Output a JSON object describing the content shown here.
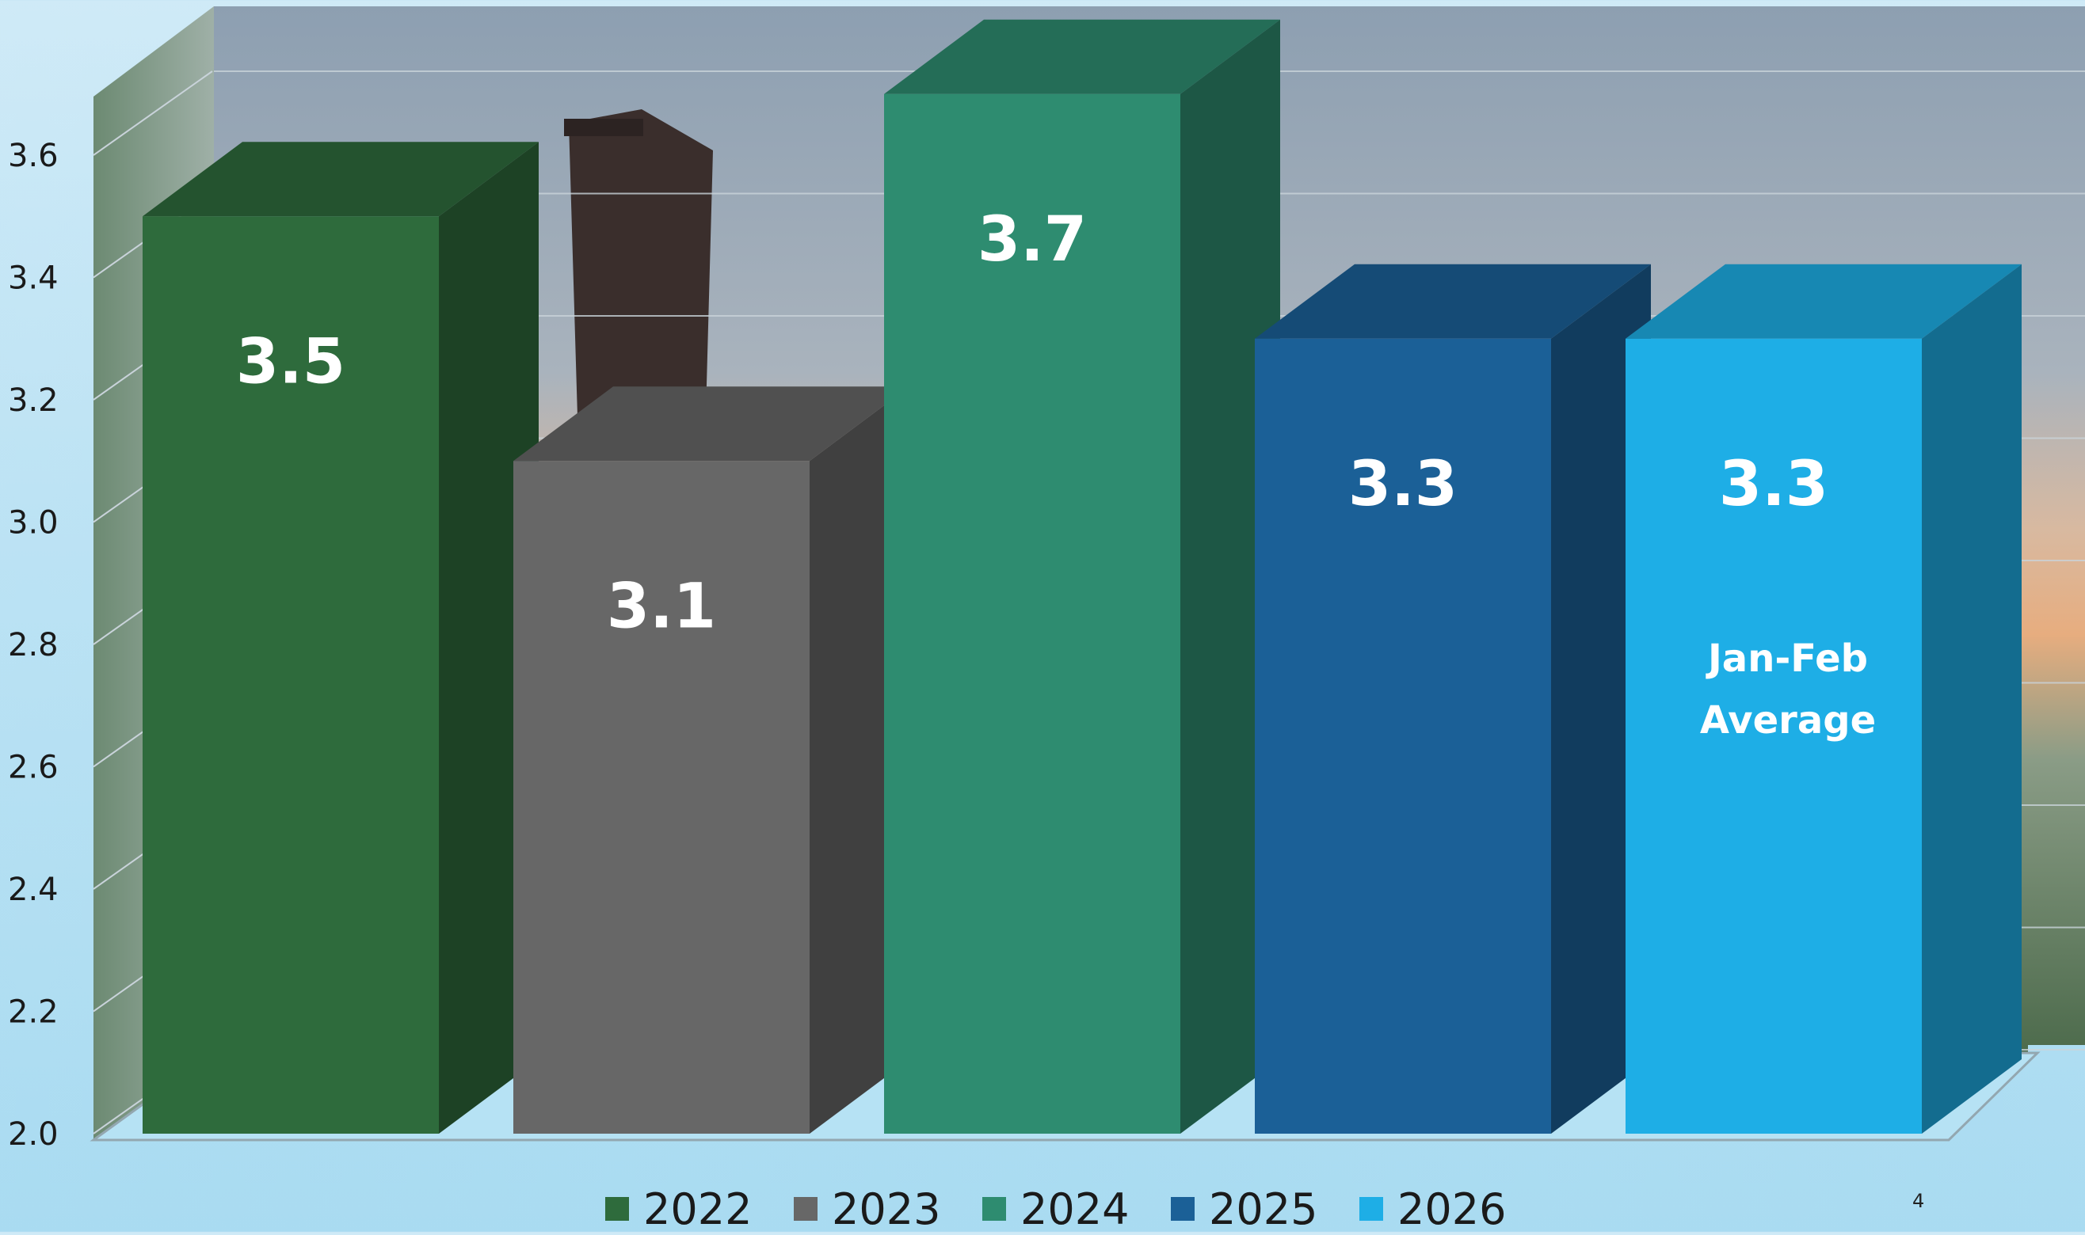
{
  "chart_data": {
    "type": "bar",
    "style": "3d-column",
    "categories": [
      "2022",
      "2023",
      "2024",
      "2025",
      "2026"
    ],
    "values": [
      3.5,
      3.1,
      3.7,
      3.3,
      3.3
    ],
    "data_labels": [
      "3.5",
      "3.1",
      "3.7",
      "3.3",
      "3.3"
    ],
    "annotation": "Jan-Feb Average",
    "ylim": [
      2.0,
      3.7
    ],
    "yticks": [
      "2.0",
      "2.2",
      "2.4",
      "2.6",
      "2.8",
      "3.0",
      "3.2",
      "3.4",
      "3.6"
    ],
    "grid": true,
    "legend_position": "bottom",
    "legend": [
      "2022",
      "2023",
      "2024",
      "2025",
      "2026"
    ],
    "colors": [
      "#2e6b3c",
      "#676767",
      "#2e8c70",
      "#1b6097",
      "#1eaee6"
    ]
  },
  "page_number": "4"
}
